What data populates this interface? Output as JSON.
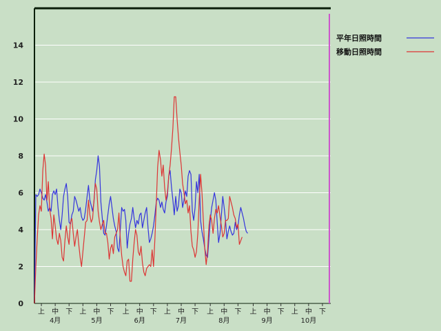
{
  "chart_data": {
    "type": "line",
    "title": "",
    "xlabel": "",
    "ylabel": "",
    "ylim": [
      0,
      16
    ],
    "yticks": [
      0,
      2,
      4,
      6,
      8,
      10,
      12,
      14
    ],
    "grid": "horizontal",
    "legend_position": "top-right",
    "x": "day index from April 1 (day 0) to October 31 (day 213)",
    "xlim": [
      0,
      214
    ],
    "period_ticks": [
      {
        "day": 5,
        "label": "上"
      },
      {
        "day": 15,
        "label": "中"
      },
      {
        "day": 25,
        "label": "下"
      },
      {
        "day": 35,
        "label": "上"
      },
      {
        "day": 45,
        "label": "中"
      },
      {
        "day": 55,
        "label": "下"
      },
      {
        "day": 66,
        "label": "上"
      },
      {
        "day": 76,
        "label": "中"
      },
      {
        "day": 86,
        "label": "下"
      },
      {
        "day": 96,
        "label": "上"
      },
      {
        "day": 106,
        "label": "中"
      },
      {
        "day": 116,
        "label": "下"
      },
      {
        "day": 127,
        "label": "上"
      },
      {
        "day": 137,
        "label": "中"
      },
      {
        "day": 147,
        "label": "下"
      },
      {
        "day": 158,
        "label": "上"
      },
      {
        "day": 168,
        "label": "中"
      },
      {
        "day": 178,
        "label": "下"
      },
      {
        "day": 188,
        "label": "上"
      },
      {
        "day": 198,
        "label": "中"
      },
      {
        "day": 208,
        "label": "下"
      }
    ],
    "month_ticks": [
      {
        "day": 15,
        "label": "4月"
      },
      {
        "day": 45,
        "label": "5月"
      },
      {
        "day": 76,
        "label": "6月"
      },
      {
        "day": 106,
        "label": "7月"
      },
      {
        "day": 137,
        "label": "8月"
      },
      {
        "day": 168,
        "label": "9月"
      },
      {
        "day": 198,
        "label": "10月"
      }
    ],
    "marker_day": 213,
    "series": [
      {
        "name": "平年日照時間",
        "color": "#3333dd",
        "points": [
          [
            0,
            0
          ],
          [
            1,
            5.9
          ],
          [
            2,
            5.8
          ],
          [
            3,
            5.9
          ],
          [
            4,
            6.2
          ],
          [
            5,
            6.0
          ],
          [
            6,
            5.7
          ],
          [
            7,
            5.6
          ],
          [
            8,
            5.9
          ],
          [
            9,
            5.5
          ],
          [
            10,
            5.0
          ],
          [
            11,
            5.2
          ],
          [
            12,
            5.0
          ],
          [
            13,
            5.9
          ],
          [
            14,
            6.1
          ],
          [
            15,
            5.9
          ],
          [
            16,
            6.2
          ],
          [
            17,
            5.2
          ],
          [
            18,
            4.5
          ],
          [
            19,
            4.0
          ],
          [
            20,
            4.8
          ],
          [
            21,
            5.8
          ],
          [
            22,
            6.2
          ],
          [
            23,
            6.5
          ],
          [
            24,
            5.8
          ],
          [
            25,
            4.4
          ],
          [
            26,
            4.3
          ],
          [
            27,
            4.8
          ],
          [
            28,
            5.0
          ],
          [
            29,
            5.8
          ],
          [
            30,
            5.6
          ],
          [
            31,
            5.3
          ],
          [
            32,
            5.0
          ],
          [
            33,
            5.2
          ],
          [
            34,
            4.7
          ],
          [
            35,
            4.5
          ],
          [
            36,
            4.6
          ],
          [
            37,
            5.1
          ],
          [
            38,
            5.8
          ],
          [
            39,
            6.4
          ],
          [
            40,
            5.6
          ],
          [
            41,
            5.3
          ],
          [
            42,
            5.0
          ],
          [
            43,
            5.5
          ],
          [
            44,
            6.7
          ],
          [
            45,
            7.2
          ],
          [
            46,
            8.0
          ],
          [
            47,
            7.4
          ],
          [
            48,
            5.5
          ],
          [
            49,
            4.6
          ],
          [
            50,
            3.8
          ],
          [
            51,
            3.7
          ],
          [
            52,
            4.2
          ],
          [
            53,
            4.8
          ],
          [
            54,
            5.4
          ],
          [
            55,
            5.8
          ],
          [
            56,
            5.2
          ],
          [
            57,
            4.6
          ],
          [
            58,
            4.2
          ],
          [
            59,
            3.9
          ],
          [
            60,
            3.0
          ],
          [
            61,
            2.8
          ],
          [
            62,
            4.0
          ],
          [
            63,
            5.2
          ],
          [
            64,
            5.0
          ],
          [
            65,
            5.1
          ],
          [
            66,
            4.5
          ],
          [
            67,
            3.0
          ],
          [
            68,
            3.8
          ],
          [
            69,
            4.3
          ],
          [
            70,
            4.6
          ],
          [
            71,
            5.2
          ],
          [
            72,
            4.6
          ],
          [
            73,
            4.1
          ],
          [
            74,
            4.5
          ],
          [
            75,
            4.3
          ],
          [
            76,
            4.8
          ],
          [
            77,
            4.9
          ],
          [
            78,
            4.1
          ],
          [
            79,
            4.5
          ],
          [
            80,
            4.9
          ],
          [
            81,
            5.2
          ],
          [
            82,
            4.1
          ],
          [
            83,
            3.3
          ],
          [
            84,
            3.5
          ],
          [
            85,
            3.8
          ],
          [
            86,
            4.2
          ],
          [
            87,
            4.8
          ],
          [
            88,
            5.5
          ],
          [
            89,
            5.7
          ],
          [
            90,
            5.6
          ],
          [
            91,
            5.2
          ],
          [
            92,
            5.5
          ],
          [
            93,
            5.1
          ],
          [
            94,
            4.9
          ],
          [
            95,
            5.5
          ],
          [
            96,
            5.8
          ],
          [
            97,
            6.9
          ],
          [
            98,
            7.2
          ],
          [
            99,
            6.3
          ],
          [
            100,
            5.6
          ],
          [
            101,
            4.8
          ],
          [
            102,
            5.8
          ],
          [
            103,
            5.0
          ],
          [
            104,
            5.3
          ],
          [
            105,
            6.2
          ],
          [
            106,
            6.0
          ],
          [
            107,
            5.2
          ],
          [
            108,
            5.6
          ],
          [
            109,
            6.1
          ],
          [
            110,
            5.8
          ],
          [
            111,
            6.9
          ],
          [
            112,
            7.2
          ],
          [
            113,
            7.0
          ],
          [
            114,
            5.0
          ],
          [
            115,
            4.5
          ],
          [
            116,
            5.2
          ],
          [
            117,
            6.6
          ],
          [
            118,
            6.0
          ],
          [
            119,
            7.0
          ],
          [
            120,
            4.5
          ],
          [
            121,
            3.9
          ],
          [
            122,
            3.5
          ],
          [
            123,
            3.0
          ],
          [
            124,
            2.6
          ],
          [
            125,
            2.5
          ],
          [
            126,
            3.5
          ],
          [
            127,
            4.5
          ],
          [
            128,
            5.2
          ],
          [
            129,
            5.6
          ],
          [
            130,
            6.0
          ],
          [
            131,
            5.6
          ],
          [
            132,
            4.4
          ],
          [
            133,
            3.3
          ],
          [
            134,
            3.8
          ],
          [
            135,
            4.8
          ],
          [
            136,
            5.8
          ],
          [
            137,
            5.2
          ],
          [
            138,
            4.5
          ],
          [
            139,
            3.5
          ],
          [
            140,
            3.9
          ],
          [
            141,
            4.2
          ],
          [
            142,
            3.9
          ],
          [
            143,
            3.7
          ],
          [
            144,
            3.8
          ],
          [
            145,
            4.4
          ],
          [
            146,
            4.0
          ],
          [
            147,
            4.2
          ],
          [
            148,
            4.8
          ],
          [
            149,
            5.2
          ],
          [
            150,
            4.9
          ],
          [
            151,
            4.6
          ],
          [
            152,
            4.2
          ],
          [
            153,
            3.9
          ],
          [
            154,
            3.8
          ]
        ]
      },
      {
        "name": "移動日照時間",
        "color": "#dd3333",
        "points": [
          [
            0,
            0
          ],
          [
            1,
            2.0
          ],
          [
            2,
            3.5
          ],
          [
            3,
            4.8
          ],
          [
            4,
            5.3
          ],
          [
            5,
            5.0
          ],
          [
            6,
            7.2
          ],
          [
            7,
            8.1
          ],
          [
            8,
            7.5
          ],
          [
            9,
            5.6
          ],
          [
            10,
            6.6
          ],
          [
            11,
            5.1
          ],
          [
            12,
            4.6
          ],
          [
            13,
            3.5
          ],
          [
            14,
            4.8
          ],
          [
            15,
            4.2
          ],
          [
            16,
            3.5
          ],
          [
            17,
            3.2
          ],
          [
            18,
            3.8
          ],
          [
            19,
            3.4
          ],
          [
            20,
            2.5
          ],
          [
            21,
            2.3
          ],
          [
            22,
            3.4
          ],
          [
            23,
            4.2
          ],
          [
            24,
            3.6
          ],
          [
            25,
            3.2
          ],
          [
            26,
            4.4
          ],
          [
            27,
            4.6
          ],
          [
            28,
            3.8
          ],
          [
            29,
            3.1
          ],
          [
            30,
            3.6
          ],
          [
            31,
            4.0
          ],
          [
            32,
            3.2
          ],
          [
            33,
            2.5
          ],
          [
            34,
            2.0
          ],
          [
            35,
            2.8
          ],
          [
            36,
            3.6
          ],
          [
            37,
            4.4
          ],
          [
            38,
            4.5
          ],
          [
            39,
            5.6
          ],
          [
            40,
            4.8
          ],
          [
            41,
            4.4
          ],
          [
            42,
            4.6
          ],
          [
            43,
            5.6
          ],
          [
            44,
            6.5
          ],
          [
            45,
            6.2
          ],
          [
            46,
            5.0
          ],
          [
            47,
            4.4
          ],
          [
            48,
            4.0
          ],
          [
            49,
            4.3
          ],
          [
            50,
            4.5
          ],
          [
            51,
            3.8
          ],
          [
            52,
            3.8
          ],
          [
            53,
            3.3
          ],
          [
            54,
            2.4
          ],
          [
            55,
            3.0
          ],
          [
            56,
            3.2
          ],
          [
            57,
            2.7
          ],
          [
            58,
            3.6
          ],
          [
            59,
            3.8
          ],
          [
            60,
            4.0
          ],
          [
            61,
            4.9
          ],
          [
            62,
            3.5
          ],
          [
            63,
            2.6
          ],
          [
            64,
            2.0
          ],
          [
            65,
            1.7
          ],
          [
            66,
            1.5
          ],
          [
            67,
            2.3
          ],
          [
            68,
            2.4
          ],
          [
            69,
            1.2
          ],
          [
            70,
            1.2
          ],
          [
            71,
            2.4
          ],
          [
            72,
            3.3
          ],
          [
            73,
            4.0
          ],
          [
            74,
            3.7
          ],
          [
            75,
            2.8
          ],
          [
            76,
            2.6
          ],
          [
            77,
            3.1
          ],
          [
            78,
            2.2
          ],
          [
            79,
            1.7
          ],
          [
            80,
            1.5
          ],
          [
            81,
            1.9
          ],
          [
            82,
            2.0
          ],
          [
            83,
            2.1
          ],
          [
            84,
            2.0
          ],
          [
            85,
            2.9
          ],
          [
            86,
            2.0
          ],
          [
            87,
            3.5
          ],
          [
            88,
            5.4
          ],
          [
            89,
            7.4
          ],
          [
            90,
            8.3
          ],
          [
            91,
            7.8
          ],
          [
            92,
            6.9
          ],
          [
            93,
            7.5
          ],
          [
            94,
            6.3
          ],
          [
            95,
            5.6
          ],
          [
            96,
            6.0
          ],
          [
            97,
            6.9
          ],
          [
            98,
            7.5
          ],
          [
            99,
            8.4
          ],
          [
            100,
            9.5
          ],
          [
            101,
            11.2
          ],
          [
            102,
            11.2
          ],
          [
            103,
            10.0
          ],
          [
            104,
            9.0
          ],
          [
            105,
            8.2
          ],
          [
            106,
            7.5
          ],
          [
            107,
            6.5
          ],
          [
            108,
            6.0
          ],
          [
            109,
            5.4
          ],
          [
            110,
            5.6
          ],
          [
            111,
            4.9
          ],
          [
            112,
            5.3
          ],
          [
            113,
            3.9
          ],
          [
            114,
            3.1
          ],
          [
            115,
            2.9
          ],
          [
            116,
            2.5
          ],
          [
            117,
            2.8
          ],
          [
            118,
            3.8
          ],
          [
            119,
            5.6
          ],
          [
            120,
            7.0
          ],
          [
            121,
            6.0
          ],
          [
            122,
            4.5
          ],
          [
            123,
            3.0
          ],
          [
            124,
            2.1
          ],
          [
            125,
            2.8
          ],
          [
            126,
            4.2
          ],
          [
            127,
            4.8
          ],
          [
            128,
            4.5
          ],
          [
            129,
            3.8
          ],
          [
            130,
            4.6
          ],
          [
            131,
            5.1
          ],
          [
            132,
            4.9
          ],
          [
            133,
            5.3
          ],
          [
            134,
            4.7
          ],
          [
            135,
            4.2
          ],
          [
            136,
            3.6
          ],
          [
            137,
            3.8
          ],
          [
            138,
            4.5
          ],
          [
            139,
            4.5
          ],
          [
            140,
            4.6
          ],
          [
            141,
            5.8
          ],
          [
            142,
            5.5
          ],
          [
            143,
            5.2
          ],
          [
            144,
            4.8
          ],
          [
            145,
            4.6
          ],
          [
            146,
            4.1
          ],
          [
            147,
            4.3
          ],
          [
            148,
            3.2
          ],
          [
            149,
            3.4
          ],
          [
            150,
            3.6
          ]
        ]
      }
    ]
  }
}
